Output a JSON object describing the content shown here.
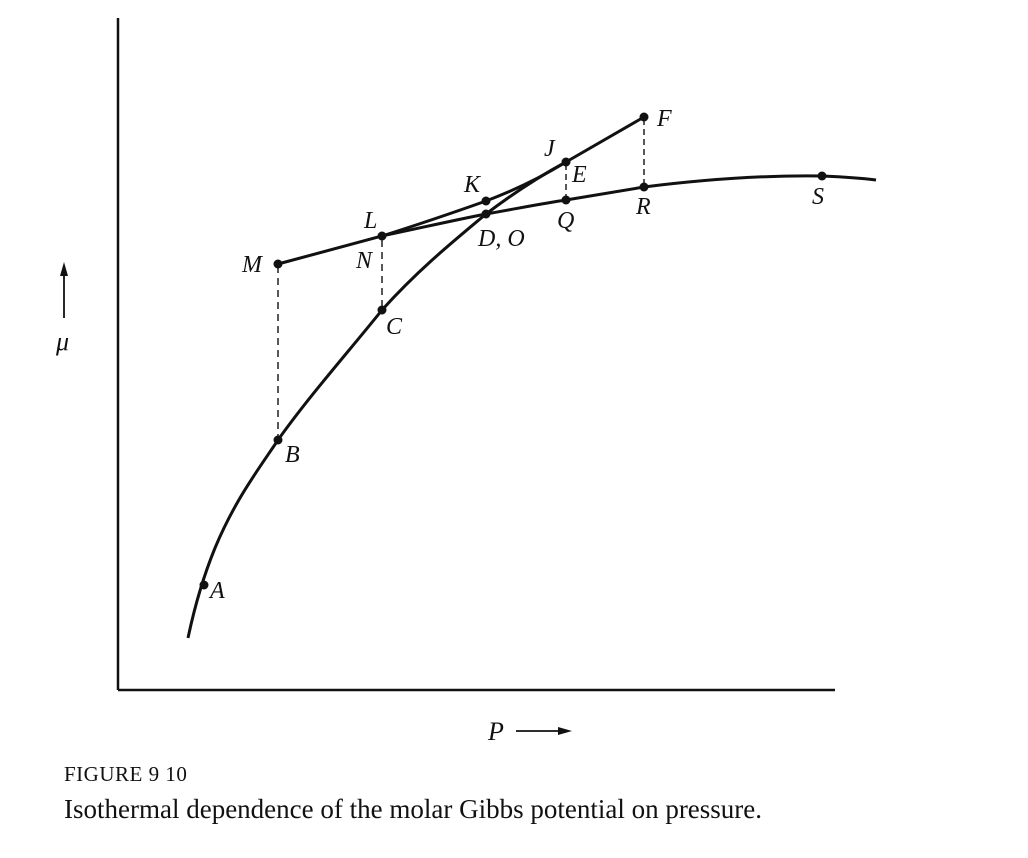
{
  "axes": {
    "y_label": "μ",
    "x_label": "P"
  },
  "points": [
    {
      "id": "A",
      "label": "A"
    },
    {
      "id": "B",
      "label": "B"
    },
    {
      "id": "C",
      "label": "C"
    },
    {
      "id": "DO",
      "label": "D, O"
    },
    {
      "id": "E",
      "label": "E"
    },
    {
      "id": "J",
      "label": "J"
    },
    {
      "id": "F",
      "label": "F"
    },
    {
      "id": "K",
      "label": "K"
    },
    {
      "id": "L",
      "label": "L"
    },
    {
      "id": "M",
      "label": "M"
    },
    {
      "id": "N",
      "label": "N"
    },
    {
      "id": "Q",
      "label": "Q"
    },
    {
      "id": "R",
      "label": "R"
    },
    {
      "id": "S",
      "label": "S"
    }
  ],
  "caption": {
    "number": "FIGURE 9 10",
    "text": "Isothermal dependence of the molar Gibbs potential on pressure."
  }
}
